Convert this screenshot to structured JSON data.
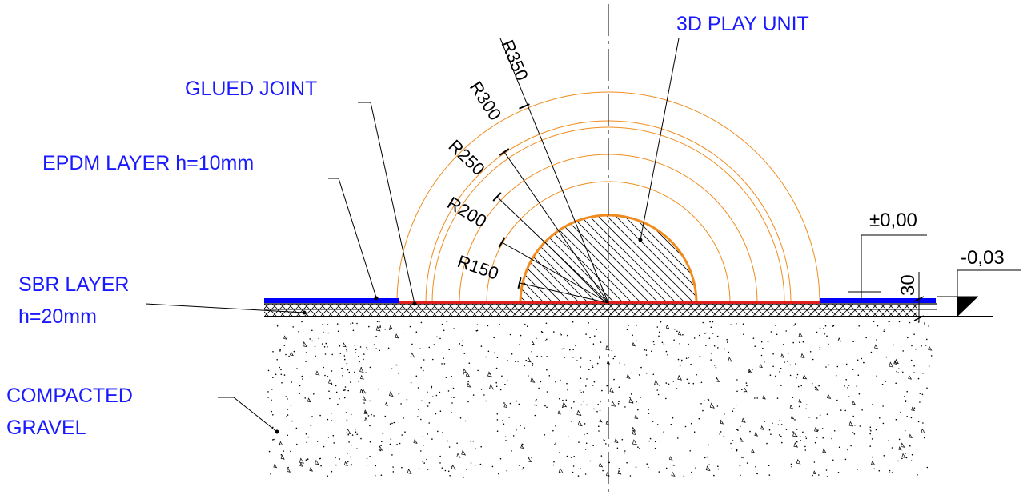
{
  "labels": {
    "play_unit": "3D PLAY UNIT",
    "glued_joint": "GLUED JOINT",
    "epdm_layer": "EPDM LAYER h=10mm",
    "sbr_layer_line1": "SBR LAYER",
    "sbr_layer_line2": "h=20mm",
    "gravel_line1": "COMPACTED",
    "gravel_line2": "GRAVEL",
    "level_zero": "±0,00",
    "level_minus": "-0,03",
    "thickness": "30"
  },
  "radii": [
    "R150",
    "R200",
    "R250",
    "R300",
    "R350"
  ],
  "colors": {
    "label_text": "#1a1aff",
    "radius_arcs": "#f08c1e",
    "epdm_layer": "#0000ff",
    "glued_joint_line": "#e0201e",
    "line_work": "#000000"
  }
}
